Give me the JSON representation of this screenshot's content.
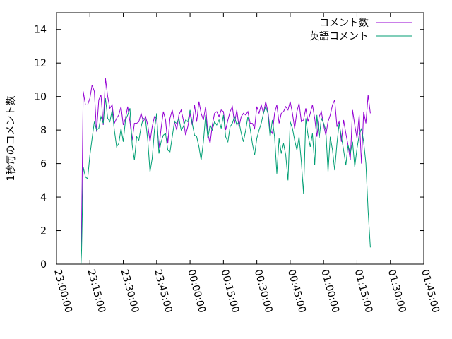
{
  "chart_data": {
    "type": "line",
    "title": "",
    "xlabel": "",
    "ylabel": "1秒毎のコメント数",
    "ylim": [
      0,
      15
    ],
    "yticks": [
      0,
      2,
      4,
      6,
      8,
      10,
      12,
      14
    ],
    "xlim": [
      "23:00:00",
      "01:45:00"
    ],
    "xticks": [
      "23:00:00",
      "23:15:00",
      "23:30:00",
      "23:45:00",
      "00:00:00",
      "00:15:00",
      "00:30:00",
      "00:45:00",
      "01:00:00",
      "01:15:00",
      "01:30:00",
      "01:45:00"
    ],
    "grid": false,
    "legend": "top-right",
    "series": [
      {
        "name": "コメント数",
        "color": "#9400d3",
        "points": [
          [
            "23:11:00",
            1.0
          ],
          [
            "23:11:15",
            2.2
          ],
          [
            "23:12:00",
            10.3
          ],
          [
            "23:13:00",
            9.5
          ],
          [
            "23:14:00",
            9.5
          ],
          [
            "23:15:00",
            9.9
          ],
          [
            "23:16:00",
            10.7
          ],
          [
            "23:17:00",
            10.3
          ],
          [
            "23:18:00",
            7.9
          ],
          [
            "23:19:00",
            9.8
          ],
          [
            "23:20:00",
            10.1
          ],
          [
            "23:21:00",
            8.3
          ],
          [
            "23:22:00",
            11.1
          ],
          [
            "23:23:00",
            10.0
          ],
          [
            "23:24:00",
            9.3
          ],
          [
            "23:25:00",
            9.5
          ],
          [
            "23:26:00",
            8.4
          ],
          [
            "23:27:00",
            8.7
          ],
          [
            "23:28:00",
            8.9
          ],
          [
            "23:29:00",
            9.4
          ],
          [
            "23:30:00",
            8.3
          ],
          [
            "23:31:00",
            8.7
          ],
          [
            "23:32:00",
            9.4
          ],
          [
            "23:33:00",
            8.5
          ],
          [
            "23:34:00",
            7.4
          ],
          [
            "23:35:00",
            8.4
          ],
          [
            "23:36:00",
            8.4
          ],
          [
            "23:37:00",
            8.5
          ],
          [
            "23:38:00",
            9.0
          ],
          [
            "23:39:00",
            8.5
          ],
          [
            "23:40:00",
            8.8
          ],
          [
            "23:41:00",
            8.3
          ],
          [
            "23:42:00",
            7.3
          ],
          [
            "23:43:00",
            8.2
          ],
          [
            "23:44:00",
            8.8
          ],
          [
            "23:45:00",
            8.7
          ],
          [
            "23:46:00",
            6.9
          ],
          [
            "23:47:00",
            8.1
          ],
          [
            "23:48:00",
            9.1
          ],
          [
            "23:49:00",
            8.6
          ],
          [
            "23:50:00",
            7.2
          ],
          [
            "23:51:00",
            8.7
          ],
          [
            "23:52:00",
            9.2
          ],
          [
            "23:53:00",
            8.5
          ],
          [
            "23:54:00",
            8.0
          ],
          [
            "23:55:00",
            8.9
          ],
          [
            "23:56:00",
            9.2
          ],
          [
            "23:57:00",
            8.6
          ],
          [
            "23:58:00",
            7.7
          ],
          [
            "23:59:00",
            8.2
          ],
          [
            "00:00:00",
            9.0
          ],
          [
            "00:01:00",
            8.3
          ],
          [
            "00:02:00",
            9.5
          ],
          [
            "00:03:00",
            8.5
          ],
          [
            "00:04:00",
            9.7
          ],
          [
            "00:05:00",
            9.0
          ],
          [
            "00:06:00",
            8.6
          ],
          [
            "00:07:00",
            9.4
          ],
          [
            "00:08:00",
            7.8
          ],
          [
            "00:09:00",
            7.2
          ],
          [
            "00:10:00",
            8.3
          ],
          [
            "00:11:00",
            9.0
          ],
          [
            "00:12:00",
            9.1
          ],
          [
            "00:13:00",
            8.8
          ],
          [
            "00:14:00",
            9.2
          ],
          [
            "00:15:00",
            9.1
          ],
          [
            "00:16:00",
            8.0
          ],
          [
            "00:17:00",
            8.6
          ],
          [
            "00:18:00",
            9.1
          ],
          [
            "00:19:00",
            9.4
          ],
          [
            "00:20:00",
            8.4
          ],
          [
            "00:21:00",
            9.2
          ],
          [
            "00:22:00",
            8.2
          ],
          [
            "00:23:00",
            8.8
          ],
          [
            "00:24:00",
            9.0
          ],
          [
            "00:25:00",
            8.9
          ],
          [
            "00:26:00",
            9.1
          ],
          [
            "00:27:00",
            8.4
          ],
          [
            "00:28:00",
            8.4
          ],
          [
            "00:29:00",
            8.1
          ],
          [
            "00:30:00",
            9.4
          ],
          [
            "00:31:00",
            9.0
          ],
          [
            "00:32:00",
            9.5
          ],
          [
            "00:33:00",
            9.0
          ],
          [
            "00:34:00",
            9.7
          ],
          [
            "00:35:00",
            9.1
          ],
          [
            "00:36:00",
            8.0
          ],
          [
            "00:37:00",
            7.8
          ],
          [
            "00:38:00",
            9.0
          ],
          [
            "00:39:00",
            9.5
          ],
          [
            "00:40:00",
            8.4
          ],
          [
            "00:41:00",
            9.0
          ],
          [
            "00:42:00",
            9.1
          ],
          [
            "00:43:00",
            9.4
          ],
          [
            "00:44:00",
            9.2
          ],
          [
            "00:45:00",
            9.7
          ],
          [
            "00:46:00",
            9.0
          ],
          [
            "00:47:00",
            8.1
          ],
          [
            "00:48:00",
            9.1
          ],
          [
            "00:49:00",
            9.6
          ],
          [
            "00:50:00",
            8.5
          ],
          [
            "00:51:00",
            8.6
          ],
          [
            "00:52:00",
            9.3
          ],
          [
            "00:53:00",
            8.5
          ],
          [
            "00:54:00",
            9.0
          ],
          [
            "00:55:00",
            9.5
          ],
          [
            "00:56:00",
            8.7
          ],
          [
            "00:57:00",
            7.6
          ],
          [
            "00:58:00",
            8.8
          ],
          [
            "00:59:00",
            9.1
          ],
          [
            "01:00:00",
            8.3
          ],
          [
            "01:01:00",
            7.7
          ],
          [
            "01:02:00",
            8.5
          ],
          [
            "01:03:00",
            8.9
          ],
          [
            "01:04:00",
            9.5
          ],
          [
            "01:05:00",
            9.8
          ],
          [
            "01:06:00",
            8.2
          ],
          [
            "01:07:00",
            8.5
          ],
          [
            "01:08:00",
            7.3
          ],
          [
            "01:09:00",
            8.6
          ],
          [
            "01:10:00",
            7.8
          ],
          [
            "01:11:00",
            7.1
          ],
          [
            "01:12:00",
            6.2
          ],
          [
            "01:13:00",
            9.2
          ],
          [
            "01:14:00",
            8.3
          ],
          [
            "01:15:00",
            7.5
          ],
          [
            "01:16:00",
            8.9
          ],
          [
            "01:17:00",
            6.0
          ],
          [
            "01:18:00",
            9.1
          ],
          [
            "01:19:00",
            8.4
          ],
          [
            "01:20:00",
            10.1
          ],
          [
            "01:21:00",
            9.0
          ]
        ]
      },
      {
        "name": "英語コメント",
        "color": "#009e73",
        "points": [
          [
            "23:11:00",
            0.0
          ],
          [
            "23:11:15",
            0.8
          ],
          [
            "23:12:00",
            5.8
          ],
          [
            "23:13:00",
            5.2
          ],
          [
            "23:14:00",
            5.1
          ],
          [
            "23:15:00",
            6.5
          ],
          [
            "23:16:00",
            7.5
          ],
          [
            "23:17:00",
            8.5
          ],
          [
            "23:18:00",
            8.0
          ],
          [
            "23:19:00",
            8.1
          ],
          [
            "23:20:00",
            8.8
          ],
          [
            "23:21:00",
            8.4
          ],
          [
            "23:22:00",
            9.9
          ],
          [
            "23:23:00",
            8.7
          ],
          [
            "23:24:00",
            8.5
          ],
          [
            "23:25:00",
            9.2
          ],
          [
            "23:26:00",
            8.0
          ],
          [
            "23:27:00",
            7.0
          ],
          [
            "23:28:00",
            7.2
          ],
          [
            "23:29:00",
            8.1
          ],
          [
            "23:30:00",
            7.3
          ],
          [
            "23:31:00",
            8.6
          ],
          [
            "23:32:00",
            8.9
          ],
          [
            "23:33:00",
            9.3
          ],
          [
            "23:34:00",
            7.1
          ],
          [
            "23:35:00",
            6.2
          ],
          [
            "23:36:00",
            7.6
          ],
          [
            "23:37:00",
            7.4
          ],
          [
            "23:38:00",
            8.2
          ],
          [
            "23:39:00",
            8.7
          ],
          [
            "23:40:00",
            8.6
          ],
          [
            "23:41:00",
            7.4
          ],
          [
            "23:42:00",
            5.5
          ],
          [
            "23:43:00",
            6.3
          ],
          [
            "23:44:00",
            8.0
          ],
          [
            "23:45:00",
            9.0
          ],
          [
            "23:46:00",
            6.6
          ],
          [
            "23:47:00",
            7.3
          ],
          [
            "23:48:00",
            7.7
          ],
          [
            "23:49:00",
            7.8
          ],
          [
            "23:50:00",
            6.8
          ],
          [
            "23:51:00",
            6.7
          ],
          [
            "23:52:00",
            7.6
          ],
          [
            "23:53:00",
            8.5
          ],
          [
            "23:54:00",
            8.4
          ],
          [
            "23:55:00",
            8.7
          ],
          [
            "23:56:00",
            8.0
          ],
          [
            "23:57:00",
            8.2
          ],
          [
            "23:58:00",
            8.6
          ],
          [
            "23:59:00",
            8.5
          ],
          [
            "00:00:00",
            9.2
          ],
          [
            "00:01:00",
            8.4
          ],
          [
            "00:02:00",
            7.7
          ],
          [
            "00:03:00",
            7.6
          ],
          [
            "00:04:00",
            7.0
          ],
          [
            "00:05:00",
            6.2
          ],
          [
            "00:06:00",
            7.3
          ],
          [
            "00:07:00",
            8.9
          ],
          [
            "00:08:00",
            7.5
          ],
          [
            "00:09:00",
            8.3
          ],
          [
            "00:10:00",
            8.0
          ],
          [
            "00:11:00",
            8.5
          ],
          [
            "00:12:00",
            8.3
          ],
          [
            "00:13:00",
            8.6
          ],
          [
            "00:14:00",
            8.1
          ],
          [
            "00:15:00",
            8.9
          ],
          [
            "00:16:00",
            7.6
          ],
          [
            "00:17:00",
            7.3
          ],
          [
            "00:18:00",
            8.2
          ],
          [
            "00:19:00",
            8.4
          ],
          [
            "00:20:00",
            8.8
          ],
          [
            "00:21:00",
            8.3
          ],
          [
            "00:22:00",
            8.5
          ],
          [
            "00:23:00",
            7.8
          ],
          [
            "00:24:00",
            7.3
          ],
          [
            "00:25:00",
            8.0
          ],
          [
            "00:26:00",
            8.8
          ],
          [
            "00:27:00",
            8.1
          ],
          [
            "00:28:00",
            7.2
          ],
          [
            "00:29:00",
            6.5
          ],
          [
            "00:30:00",
            7.5
          ],
          [
            "00:31:00",
            8.0
          ],
          [
            "00:32:00",
            8.4
          ],
          [
            "00:33:00",
            9.0
          ],
          [
            "00:34:00",
            9.4
          ],
          [
            "00:35:00",
            9.0
          ],
          [
            "00:36:00",
            7.6
          ],
          [
            "00:37:00",
            8.6
          ],
          [
            "00:38:00",
            7.6
          ],
          [
            "00:39:00",
            5.4
          ],
          [
            "00:40:00",
            7.5
          ],
          [
            "00:41:00",
            6.6
          ],
          [
            "00:42:00",
            7.2
          ],
          [
            "00:43:00",
            6.5
          ],
          [
            "00:44:00",
            5.0
          ],
          [
            "00:45:00",
            8.5
          ],
          [
            "00:46:00",
            8.1
          ],
          [
            "00:47:00",
            7.4
          ],
          [
            "00:48:00",
            6.8
          ],
          [
            "00:49:00",
            7.6
          ],
          [
            "00:50:00",
            6.1
          ],
          [
            "00:51:00",
            4.2
          ],
          [
            "00:52:00",
            8.7
          ],
          [
            "00:53:00",
            7.7
          ],
          [
            "00:54:00",
            7.0
          ],
          [
            "00:55:00",
            7.8
          ],
          [
            "00:56:00",
            5.9
          ],
          [
            "00:57:00",
            8.9
          ],
          [
            "00:58:00",
            7.5
          ],
          [
            "00:59:00",
            8.7
          ],
          [
            "01:00:00",
            8.4
          ],
          [
            "01:01:00",
            8.0
          ],
          [
            "01:02:00",
            5.5
          ],
          [
            "01:03:00",
            7.6
          ],
          [
            "01:04:00",
            6.8
          ],
          [
            "01:05:00",
            5.6
          ],
          [
            "01:06:00",
            7.2
          ],
          [
            "01:07:00",
            8.4
          ],
          [
            "01:08:00",
            7.6
          ],
          [
            "01:09:00",
            6.8
          ],
          [
            "01:10:00",
            5.9
          ],
          [
            "01:11:00",
            7.1
          ],
          [
            "01:12:00",
            6.6
          ],
          [
            "01:13:00",
            7.3
          ],
          [
            "01:14:00",
            5.8
          ],
          [
            "01:15:00",
            6.9
          ],
          [
            "01:16:00",
            7.7
          ],
          [
            "01:17:00",
            8.1
          ],
          [
            "01:18:00",
            7.3
          ],
          [
            "01:19:00",
            6.0
          ],
          [
            "01:20:00",
            3.2
          ],
          [
            "01:21:00",
            1.0
          ]
        ]
      }
    ]
  }
}
